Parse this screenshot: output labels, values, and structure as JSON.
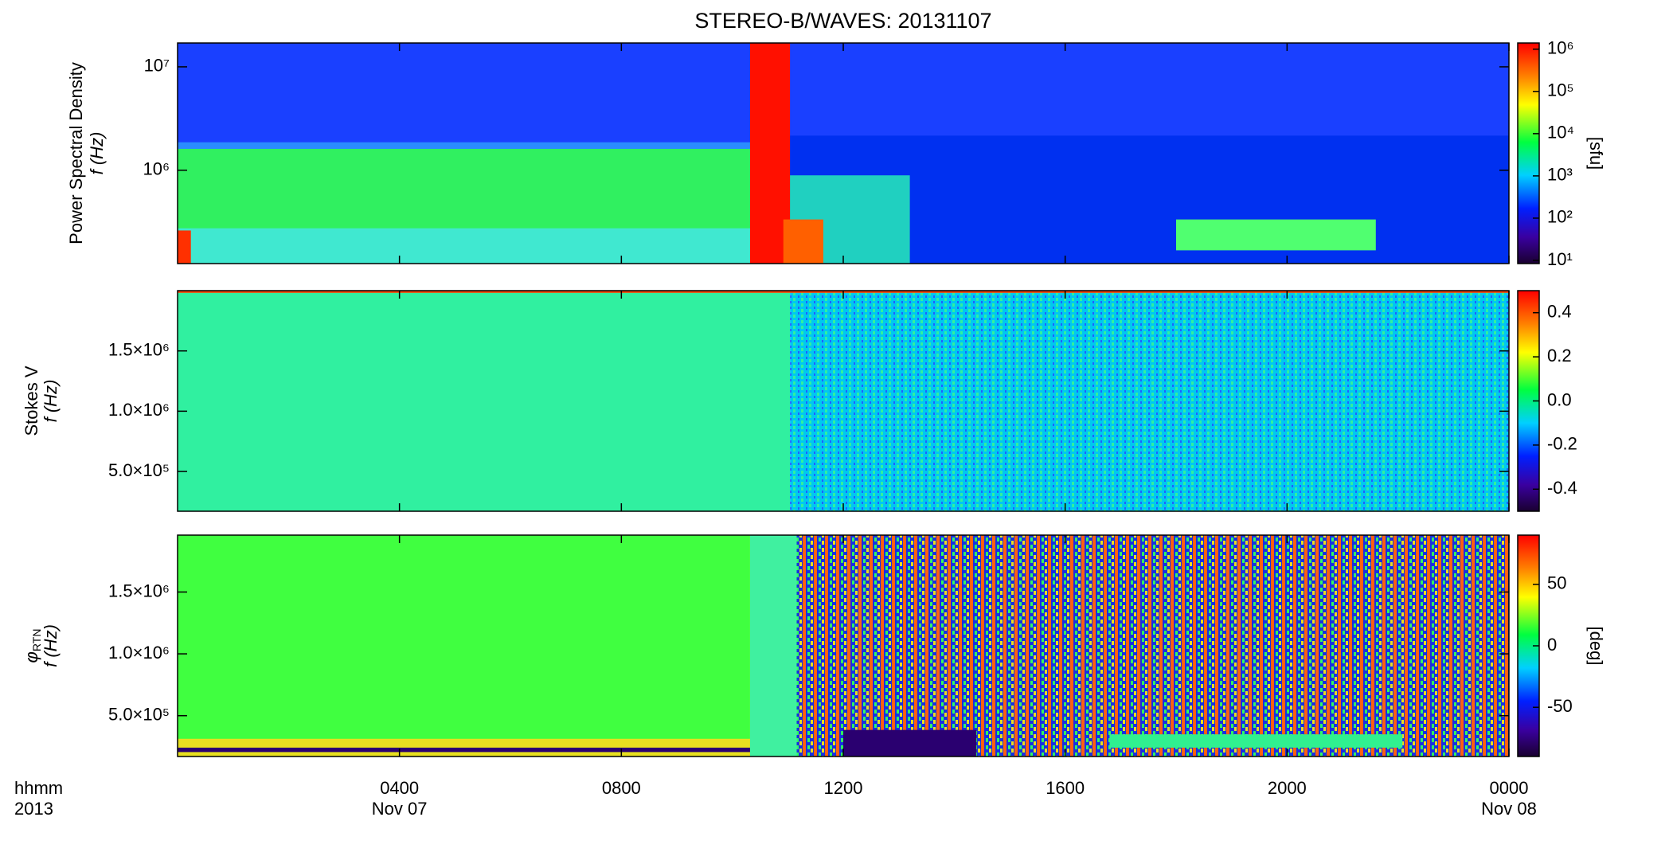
{
  "chart_data": [
    {
      "type": "heatmap",
      "title": "STEREO-B/WAVES: 20131107",
      "ylabel": "Power Spectral Density",
      "ylabel2": "f (Hz)",
      "yscale": "log",
      "ylim": [
        125000,
        17000000
      ],
      "yticks": [
        {
          "value": 1000000,
          "label": "10⁶"
        },
        {
          "value": 10000000,
          "label": "10⁷"
        }
      ],
      "xlim": [
        0,
        24
      ],
      "colorbar": {
        "scale": "log",
        "lim": [
          8.4,
          1400000
        ],
        "label": "[sfu]",
        "ticks": [
          {
            "value": 10,
            "label": "10¹"
          },
          {
            "value": 100,
            "label": "10²"
          },
          {
            "value": 1000,
            "label": "10³"
          },
          {
            "value": 10000,
            "label": "10⁴"
          },
          {
            "value": 100000,
            "label": "10⁵"
          },
          {
            "value": 1000000,
            "label": "10⁶"
          }
        ]
      }
    },
    {
      "type": "heatmap",
      "ylabel": "Stokes V",
      "ylabel2": "f (Hz)",
      "yscale": "linear",
      "ylim": [
        170000,
        2000000
      ],
      "yticks": [
        {
          "value": 500000,
          "label": "5.0×10⁵"
        },
        {
          "value": 1000000,
          "label": "1.0×10⁶"
        },
        {
          "value": 1500000,
          "label": "1.5×10⁶"
        }
      ],
      "xlim": [
        0,
        24
      ],
      "colorbar": {
        "scale": "linear",
        "lim": [
          -0.5,
          0.5
        ],
        "ticks": [
          {
            "value": -0.4,
            "label": "-0.4"
          },
          {
            "value": -0.2,
            "label": "-0.2"
          },
          {
            "value": 0,
            "label": "0.0"
          },
          {
            "value": 0.2,
            "label": "0.2"
          },
          {
            "value": 0.4,
            "label": "0.4"
          }
        ]
      }
    },
    {
      "type": "heatmap",
      "ylabel_symbol": "φ",
      "ylabel_subscript": "RTN",
      "ylabel2": "f (Hz)",
      "yscale": "linear",
      "ylim": [
        170000,
        1960000
      ],
      "yticks": [
        {
          "value": 500000,
          "label": "5.0×10⁵"
        },
        {
          "value": 1000000,
          "label": "1.0×10⁶"
        },
        {
          "value": 1500000,
          "label": "1.5×10⁶"
        }
      ],
      "xlim": [
        0,
        24
      ],
      "xticks": [
        {
          "value": 4,
          "label": "0400"
        },
        {
          "value": 8,
          "label": "0800"
        },
        {
          "value": 12,
          "label": "1200"
        },
        {
          "value": 16,
          "label": "1600"
        },
        {
          "value": 20,
          "label": "2000"
        },
        {
          "value": 24,
          "label": "0000"
        }
      ],
      "xdates": [
        {
          "value": 4,
          "label": "Nov 07"
        },
        {
          "value": 24,
          "label": "Nov 08"
        }
      ],
      "xlabel": "hhmm",
      "xlabel2": "2013",
      "colorbar": {
        "scale": "linear",
        "lim": [
          -90,
          90
        ],
        "label": "[deg]",
        "ticks": [
          {
            "value": -50,
            "label": "-50"
          },
          0,
          50
        ]
      }
    }
  ]
}
